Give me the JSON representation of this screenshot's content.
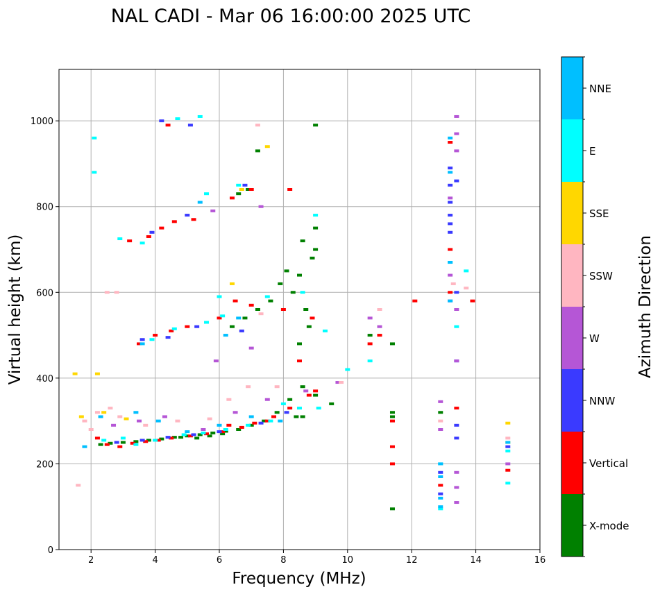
{
  "chart_data": {
    "type": "scatter",
    "title": "NAL CADI - Mar 06 16:00:00 2025 UTC",
    "xlabel": "Frequency (MHz)",
    "ylabel": "Virtual height (km)",
    "xlim": [
      1,
      16
    ],
    "ylim": [
      0,
      1120
    ],
    "xticks": [
      2,
      4,
      6,
      8,
      10,
      12,
      14,
      16
    ],
    "yticks": [
      0,
      200,
      400,
      600,
      800,
      1000
    ],
    "grid": true,
    "colorbar": {
      "label": "Azimuth Direction",
      "categories": [
        "X-mode",
        "Vertical",
        "NNW",
        "W",
        "SSW",
        "SSE",
        "E",
        "NNE"
      ],
      "colors": [
        "#008000",
        "#ff0000",
        "#3a3aff",
        "#b556d6",
        "#ffb6c1",
        "#ffd700",
        "#00ffff",
        "#00bfff"
      ]
    },
    "series": [
      {
        "name": "X-mode",
        "points": [
          [
            2.3,
            245
          ],
          [
            2.6,
            248
          ],
          [
            3.0,
            250
          ],
          [
            3.4,
            252
          ],
          [
            3.8,
            255
          ],
          [
            4.2,
            258
          ],
          [
            4.6,
            262
          ],
          [
            5.0,
            265
          ],
          [
            5.4,
            268
          ],
          [
            5.8,
            272
          ],
          [
            6.2,
            276
          ],
          [
            6.6,
            280
          ],
          [
            7.0,
            290
          ],
          [
            7.4,
            300
          ],
          [
            7.8,
            320
          ],
          [
            8.2,
            350
          ],
          [
            8.6,
            380
          ],
          [
            9.0,
            360
          ],
          [
            8.4,
            310
          ],
          [
            8.6,
            310
          ],
          [
            8.8,
            520
          ],
          [
            8.5,
            480
          ],
          [
            8.7,
            560
          ],
          [
            8.3,
            600
          ],
          [
            8.5,
            640
          ],
          [
            8.9,
            680
          ],
          [
            9.0,
            700
          ],
          [
            8.6,
            720
          ],
          [
            9.0,
            750
          ],
          [
            9.0,
            990
          ],
          [
            7.2,
            930
          ],
          [
            6.6,
            830
          ],
          [
            6.9,
            840
          ],
          [
            6.4,
            520
          ],
          [
            6.8,
            540
          ],
          [
            7.2,
            560
          ],
          [
            7.6,
            580
          ],
          [
            7.9,
            620
          ],
          [
            8.1,
            650
          ],
          [
            10.7,
            500
          ],
          [
            11.4,
            480
          ],
          [
            11.4,
            310
          ],
          [
            11.4,
            320
          ],
          [
            11.4,
            95
          ],
          [
            12.9,
            320
          ],
          [
            5.3,
            260
          ],
          [
            5.7,
            265
          ],
          [
            6.1,
            270
          ],
          [
            4.8,
            262
          ],
          [
            9.5,
            340
          ]
        ]
      },
      {
        "name": "Vertical",
        "points": [
          [
            2.2,
            260
          ],
          [
            2.5,
            245
          ],
          [
            2.9,
            240
          ],
          [
            3.3,
            248
          ],
          [
            3.7,
            252
          ],
          [
            4.1,
            255
          ],
          [
            4.5,
            260
          ],
          [
            5.1,
            265
          ],
          [
            5.6,
            270
          ],
          [
            6.1,
            275
          ],
          [
            6.7,
            285
          ],
          [
            7.1,
            295
          ],
          [
            7.7,
            310
          ],
          [
            8.2,
            330
          ],
          [
            8.8,
            360
          ],
          [
            3.5,
            480
          ],
          [
            4.0,
            500
          ],
          [
            4.5,
            510
          ],
          [
            5.0,
            520
          ],
          [
            6.0,
            540
          ],
          [
            6.5,
            580
          ],
          [
            7.0,
            570
          ],
          [
            8.5,
            440
          ],
          [
            8.9,
            540
          ],
          [
            3.2,
            720
          ],
          [
            3.8,
            730
          ],
          [
            4.2,
            750
          ],
          [
            4.6,
            765
          ],
          [
            5.2,
            770
          ],
          [
            6.4,
            820
          ],
          [
            7.0,
            840
          ],
          [
            4.4,
            990
          ],
          [
            8.2,
            840
          ],
          [
            10.7,
            480
          ],
          [
            11.0,
            500
          ],
          [
            11.4,
            300
          ],
          [
            11.4,
            240
          ],
          [
            11.4,
            200
          ],
          [
            12.1,
            580
          ],
          [
            13.2,
            950
          ],
          [
            13.2,
            700
          ],
          [
            13.2,
            600
          ],
          [
            13.4,
            330
          ],
          [
            13.9,
            580
          ],
          [
            15.0,
            185
          ],
          [
            12.9,
            150
          ],
          [
            9.0,
            370
          ],
          [
            6.3,
            290
          ],
          [
            7.5,
            300
          ],
          [
            8.0,
            560
          ]
        ]
      },
      {
        "name": "NNW",
        "points": [
          [
            2.8,
            250
          ],
          [
            3.6,
            255
          ],
          [
            4.4,
            262
          ],
          [
            5.2,
            268
          ],
          [
            6.0,
            275
          ],
          [
            7.3,
            295
          ],
          [
            8.1,
            320
          ],
          [
            3.6,
            490
          ],
          [
            4.4,
            495
          ],
          [
            5.3,
            520
          ],
          [
            6.7,
            510
          ],
          [
            3.9,
            740
          ],
          [
            5.0,
            780
          ],
          [
            6.8,
            850
          ],
          [
            13.2,
            890
          ],
          [
            13.2,
            850
          ],
          [
            13.2,
            810
          ],
          [
            13.2,
            780
          ],
          [
            13.2,
            760
          ],
          [
            13.2,
            740
          ],
          [
            13.4,
            860
          ],
          [
            13.4,
            600
          ],
          [
            13.4,
            440
          ],
          [
            13.4,
            290
          ],
          [
            13.4,
            260
          ],
          [
            12.9,
            180
          ],
          [
            12.9,
            130
          ],
          [
            15.0,
            240
          ],
          [
            4.2,
            1000
          ],
          [
            5.1,
            990
          ]
        ]
      },
      {
        "name": "W",
        "points": [
          [
            2.7,
            290
          ],
          [
            3.5,
            300
          ],
          [
            4.3,
            310
          ],
          [
            5.5,
            280
          ],
          [
            6.5,
            320
          ],
          [
            7.5,
            350
          ],
          [
            8.7,
            370
          ],
          [
            9.7,
            390
          ],
          [
            5.9,
            440
          ],
          [
            7.0,
            470
          ],
          [
            10.7,
            540
          ],
          [
            11.0,
            520
          ],
          [
            12.9,
            345
          ],
          [
            12.9,
            280
          ],
          [
            13.2,
            820
          ],
          [
            13.2,
            640
          ],
          [
            13.2,
            580
          ],
          [
            13.4,
            1010
          ],
          [
            13.4,
            970
          ],
          [
            13.4,
            930
          ],
          [
            13.4,
            560
          ],
          [
            13.4,
            440
          ],
          [
            13.4,
            180
          ],
          [
            13.4,
            145
          ],
          [
            13.4,
            110
          ],
          [
            15.0,
            200
          ],
          [
            7.3,
            800
          ],
          [
            5.8,
            790
          ]
        ]
      },
      {
        "name": "SSW",
        "points": [
          [
            1.8,
            300
          ],
          [
            2.0,
            280
          ],
          [
            2.2,
            320
          ],
          [
            2.6,
            330
          ],
          [
            2.9,
            310
          ],
          [
            3.7,
            290
          ],
          [
            4.7,
            300
          ],
          [
            5.7,
            305
          ],
          [
            6.3,
            350
          ],
          [
            6.9,
            380
          ],
          [
            7.8,
            380
          ],
          [
            9.8,
            390
          ],
          [
            2.5,
            600
          ],
          [
            2.8,
            600
          ],
          [
            7.3,
            550
          ],
          [
            11.0,
            560
          ],
          [
            13.3,
            620
          ],
          [
            13.7,
            610
          ],
          [
            15.0,
            260
          ],
          [
            12.9,
            300
          ],
          [
            1.6,
            150
          ],
          [
            7.2,
            990
          ]
        ]
      },
      {
        "name": "SSE",
        "points": [
          [
            1.7,
            310
          ],
          [
            2.4,
            320
          ],
          [
            3.1,
            305
          ],
          [
            6.4,
            620
          ],
          [
            6.7,
            840
          ],
          [
            7.5,
            940
          ],
          [
            15.0,
            295
          ],
          [
            15.0,
            250
          ],
          [
            1.5,
            410
          ],
          [
            2.2,
            410
          ]
        ]
      },
      {
        "name": "E",
        "points": [
          [
            2.4,
            255
          ],
          [
            3.0,
            260
          ],
          [
            3.4,
            245
          ],
          [
            4.0,
            255
          ],
          [
            4.9,
            268
          ],
          [
            5.5,
            272
          ],
          [
            6.2,
            280
          ],
          [
            6.9,
            290
          ],
          [
            7.6,
            300
          ],
          [
            8.0,
            340
          ],
          [
            8.5,
            330
          ],
          [
            9.1,
            330
          ],
          [
            3.9,
            490
          ],
          [
            4.6,
            515
          ],
          [
            5.6,
            530
          ],
          [
            6.1,
            545
          ],
          [
            7.5,
            590
          ],
          [
            8.6,
            600
          ],
          [
            9.3,
            510
          ],
          [
            10.0,
            420
          ],
          [
            10.7,
            440
          ],
          [
            2.9,
            725
          ],
          [
            3.6,
            715
          ],
          [
            5.6,
            830
          ],
          [
            6.6,
            850
          ],
          [
            4.7,
            1005
          ],
          [
            5.4,
            1010
          ],
          [
            2.1,
            960
          ],
          [
            2.1,
            880
          ],
          [
            13.2,
            670
          ],
          [
            13.4,
            520
          ],
          [
            13.7,
            650
          ],
          [
            15.0,
            155
          ],
          [
            15.0,
            230
          ],
          [
            12.9,
            95
          ],
          [
            12.9,
            200
          ],
          [
            6.0,
            590
          ],
          [
            9.0,
            780
          ]
        ]
      },
      {
        "name": "NNE",
        "points": [
          [
            1.8,
            240
          ],
          [
            2.3,
            310
          ],
          [
            3.4,
            320
          ],
          [
            4.1,
            300
          ],
          [
            5.0,
            275
          ],
          [
            6.0,
            290
          ],
          [
            7.0,
            310
          ],
          [
            7.9,
            300
          ],
          [
            6.2,
            500
          ],
          [
            6.6,
            540
          ],
          [
            3.6,
            480
          ],
          [
            5.4,
            810
          ],
          [
            12.9,
            200
          ],
          [
            12.9,
            170
          ],
          [
            12.9,
            120
          ],
          [
            12.9,
            100
          ],
          [
            13.2,
            880
          ],
          [
            13.2,
            670
          ],
          [
            13.2,
            580
          ],
          [
            13.2,
            960
          ],
          [
            15.0,
            250
          ]
        ]
      }
    ]
  }
}
